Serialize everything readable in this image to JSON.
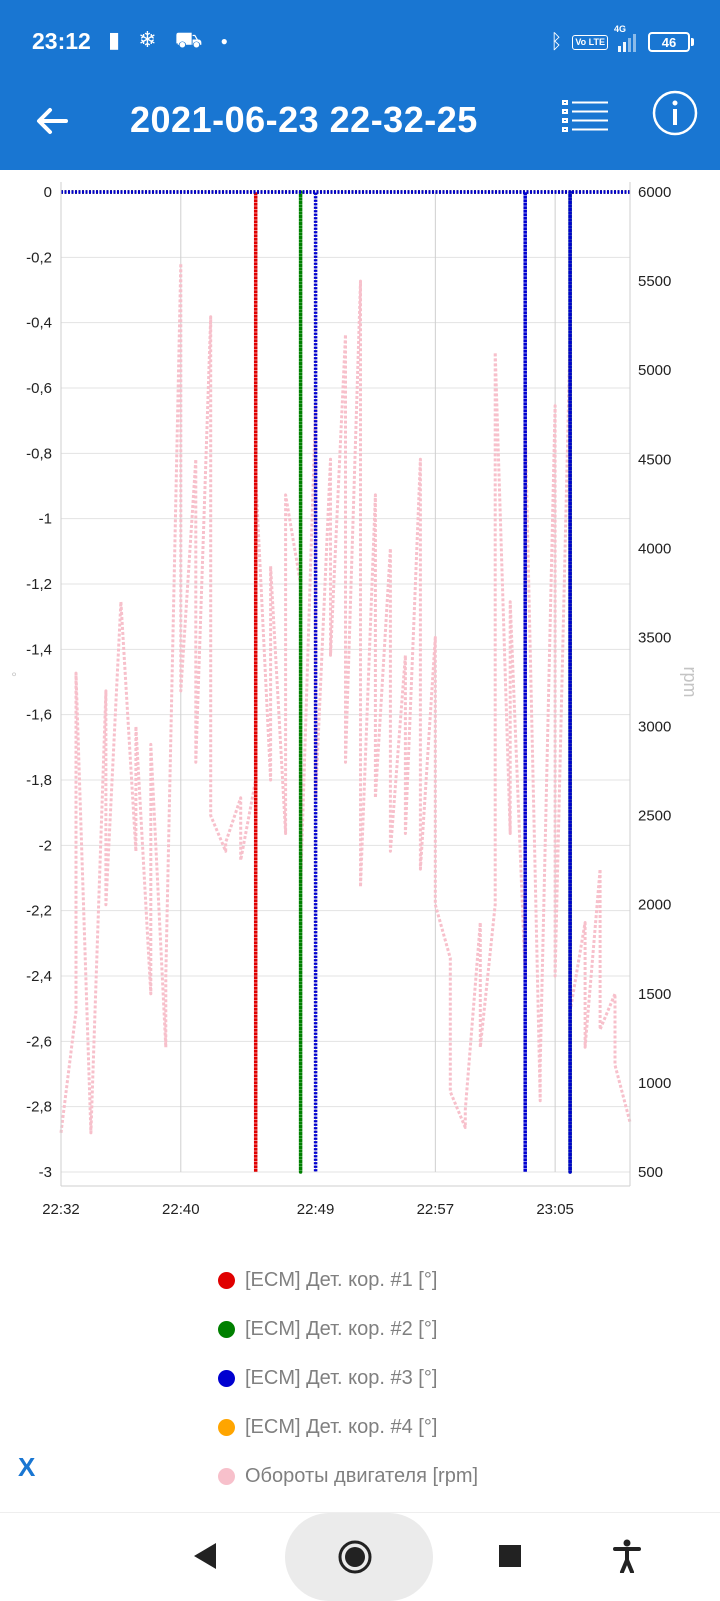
{
  "status_bar": {
    "time": "23:12",
    "left_icons": [
      "nba-icon",
      "snowflake-icon",
      "check-engine-icon",
      "dot-icon"
    ],
    "network": "4G",
    "volte_label": "Vo LTE",
    "battery": "46"
  },
  "app_bar": {
    "title": "2021-06-23 22-32-25",
    "back_icon": "arrow-left-icon",
    "list_icon": "list-icon",
    "info_icon": "info-icon"
  },
  "chart_data": {
    "type": "line",
    "x_type": "time",
    "x_ticks": [
      "22:32",
      "22:40",
      "22:49",
      "22:57",
      "23:05"
    ],
    "xlim": [
      "22:32",
      "23:10"
    ],
    "y_left": {
      "label": "°",
      "ylim": [
        -3,
        0
      ],
      "ticks": [
        "0",
        "-0,2",
        "-0,4",
        "-0,6",
        "-0,8",
        "-1",
        "-1,2",
        "-1,4",
        "-1,6",
        "-1,8",
        "-2",
        "-2,2",
        "-2,4",
        "-2,6",
        "-2,8",
        "-3"
      ]
    },
    "y_right": {
      "label": "rpm",
      "ylim": [
        500,
        6000
      ],
      "ticks": [
        "6000",
        "5500",
        "5000",
        "4500",
        "4000",
        "3500",
        "3000",
        "2500",
        "2000",
        "1500",
        "1000",
        "500"
      ]
    },
    "grid": true,
    "series": [
      {
        "name": "[ECM] Дет. кор. #1 [°]",
        "color": "#e00000",
        "axis": "left",
        "x": [
          "22:32",
          "22:45",
          "22:45",
          "22:45",
          "22:45",
          "23:10"
        ],
        "y": [
          0,
          0,
          -3,
          -3,
          0,
          0
        ]
      },
      {
        "name": "[ECM] Дет. кор. #2 [°]",
        "color": "#008000",
        "axis": "left",
        "x": [
          "22:32",
          "22:48",
          "22:48",
          "22:48",
          "22:48",
          "23:06",
          "23:06",
          "23:06",
          "23:06",
          "23:10"
        ],
        "y": [
          0,
          0,
          -3,
          -3,
          0,
          0,
          -3,
          -3,
          0,
          0
        ]
      },
      {
        "name": "[ECM] Дет. кор. #3 [°]",
        "color": "#0000d0",
        "axis": "left",
        "x": [
          "22:32",
          "22:49",
          "22:49",
          "22:49",
          "22:49",
          "23:03",
          "23:03",
          "23:03",
          "23:03",
          "23:06",
          "23:06",
          "23:06",
          "23:06",
          "23:10"
        ],
        "y": [
          0,
          0,
          -3,
          -3,
          0,
          0,
          -3,
          -3,
          0,
          0,
          -3,
          -3,
          0,
          0
        ]
      },
      {
        "name": "[ECM] Дет. кор. #4 [°]",
        "color": "#ffa500",
        "axis": "left",
        "x": [
          "22:32",
          "23:10"
        ],
        "y": [
          0,
          0
        ]
      },
      {
        "name": "Обороты двигателя [rpm]",
        "color": "#f7c0cb",
        "axis": "right",
        "x": [
          "22:32",
          "22:33",
          "22:33",
          "22:34",
          "22:35",
          "22:35",
          "22:36",
          "22:37",
          "22:37",
          "22:38",
          "22:38",
          "22:39",
          "22:39",
          "22:40",
          "22:40",
          "22:41",
          "22:41",
          "22:42",
          "22:42",
          "22:43",
          "22:43",
          "22:44",
          "22:44",
          "22:45",
          "22:45",
          "22:46",
          "22:46",
          "22:47",
          "22:47",
          "22:48",
          "22:48",
          "22:49",
          "22:49",
          "22:50",
          "22:50",
          "22:51",
          "22:51",
          "22:52",
          "22:52",
          "22:53",
          "22:53",
          "22:54",
          "22:54",
          "22:55",
          "22:55",
          "22:56",
          "22:56",
          "22:57",
          "22:57",
          "22:58",
          "22:58",
          "22:59",
          "22:59",
          "23:00",
          "23:00",
          "23:01",
          "23:01",
          "23:02",
          "23:02",
          "23:03",
          "23:03",
          "23:04",
          "23:04",
          "23:05",
          "23:05",
          "23:06",
          "23:06",
          "23:07",
          "23:07",
          "23:08",
          "23:08",
          "23:09",
          "23:09",
          "23:10"
        ],
        "y": [
          720,
          1400,
          3300,
          720,
          3200,
          2000,
          3700,
          2300,
          3000,
          1500,
          2900,
          1200,
          1600,
          5600,
          3200,
          4500,
          2800,
          5300,
          2500,
          2300,
          2350,
          2600,
          2250,
          2700,
          4400,
          2700,
          3900,
          2400,
          4300,
          3800,
          2100,
          4800,
          2600,
          4500,
          3400,
          5200,
          2800,
          5500,
          2100,
          4300,
          2600,
          4000,
          2300,
          3400,
          2400,
          4500,
          2200,
          3500,
          2000,
          1700,
          950,
          750,
          850,
          1900,
          1200,
          2000,
          5100,
          2400,
          3700,
          1600,
          4700,
          900,
          1100,
          4800,
          1600,
          5200,
          1400,
          1900,
          1200,
          2200,
          1300,
          1500,
          1100,
          780
        ]
      }
    ]
  },
  "legend": {
    "items": [
      {
        "label": "[ECM] Дет. кор. #1 [°]",
        "color": "#e00000"
      },
      {
        "label": "[ECM] Дет. кор. #2 [°]",
        "color": "#008000"
      },
      {
        "label": "[ECM] Дет. кор. #3 [°]",
        "color": "#0000d0"
      },
      {
        "label": "[ECM] Дет. кор. #4 [°]",
        "color": "#ffa500"
      },
      {
        "label": "Обороты двигателя [rpm]",
        "color": "#f7c0cb"
      }
    ],
    "close_label": "X"
  },
  "nav_bar": {
    "back_icon": "nav-back-icon",
    "home_icon": "nav-home-icon",
    "recents_icon": "nav-recents-icon",
    "accessibility_icon": "accessibility-icon"
  }
}
